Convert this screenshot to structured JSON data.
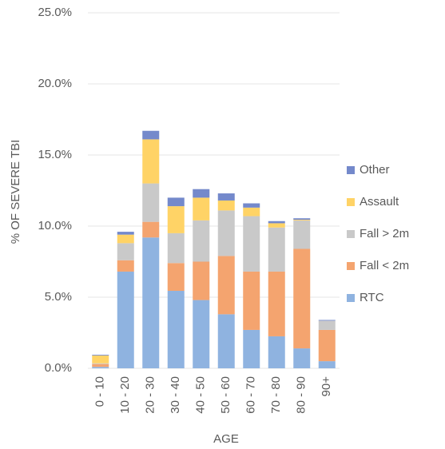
{
  "chart_data": {
    "type": "stacked_bar",
    "y_label": "% OF SEVERE TBI",
    "x_label": "AGE",
    "categories": [
      "0 - 10",
      "10 - 20",
      "20 - 30",
      "30 - 40",
      "40 - 50",
      "50 - 60",
      "60 - 70",
      "70 - 80",
      "80 - 90",
      "90+"
    ],
    "series": [
      {
        "name": "RTC",
        "color": "#8fb3e0",
        "values": [
          0.1,
          6.8,
          9.2,
          5.45,
          4.8,
          3.8,
          2.7,
          2.25,
          1.4,
          0.5
        ]
      },
      {
        "name": "Fall < 2m",
        "color": "#f4a46f",
        "values": [
          0.2,
          0.8,
          1.1,
          1.95,
          2.7,
          4.1,
          4.1,
          4.55,
          7.0,
          2.2
        ]
      },
      {
        "name": "Fall > 2m",
        "color": "#c9c9c9",
        "values": [
          0.05,
          1.2,
          2.7,
          2.1,
          2.9,
          3.2,
          3.9,
          3.1,
          2.0,
          0.65
        ]
      },
      {
        "name": "Assault",
        "color": "#ffd366",
        "values": [
          0.55,
          0.6,
          3.1,
          1.9,
          1.6,
          0.7,
          0.6,
          0.3,
          0.05,
          0
        ]
      },
      {
        "name": "Other",
        "color": "#7489cb",
        "values": [
          0.05,
          0.2,
          0.6,
          0.6,
          0.6,
          0.5,
          0.3,
          0.15,
          0.1,
          0.05
        ]
      }
    ],
    "ylim": [
      0,
      25
    ],
    "yticks": [
      {
        "value": 0,
        "label": "0.0%"
      },
      {
        "value": 5,
        "label": "5.0%"
      },
      {
        "value": 10,
        "label": "10.0%"
      },
      {
        "value": 15,
        "label": "15.0%"
      },
      {
        "value": 20,
        "label": "20.0%"
      },
      {
        "value": 25,
        "label": "25.0%"
      }
    ],
    "grid": true,
    "legend": "right"
  }
}
